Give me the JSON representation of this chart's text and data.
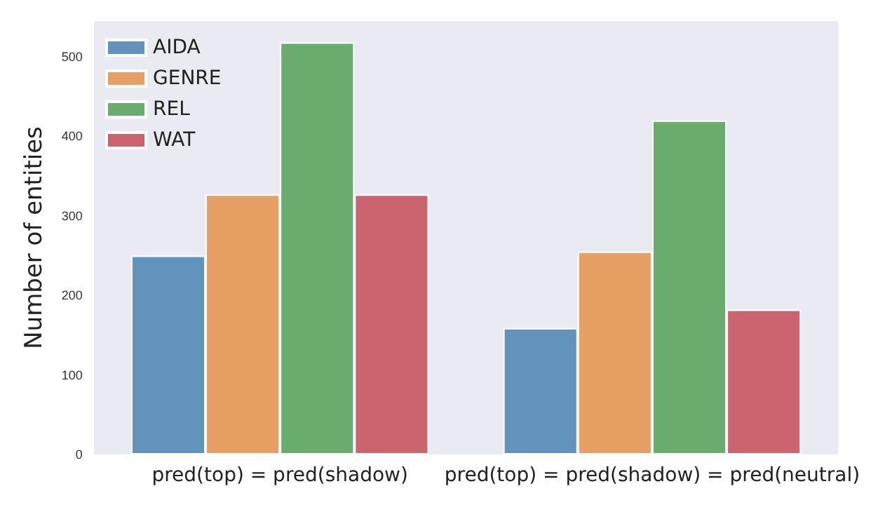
{
  "chart_data": {
    "type": "bar",
    "ylabel": "Number of entities",
    "categories": [
      "pred(top) = pred(shadow)",
      "pred(top) = pred(shadow) = pred(neutral)"
    ],
    "series": [
      {
        "name": "AIDA",
        "color": "#6293bd",
        "values": [
          250,
          159
        ]
      },
      {
        "name": "GENRE",
        "color": "#e6a064",
        "values": [
          327,
          255
        ]
      },
      {
        "name": "REL",
        "color": "#6aac6e",
        "values": [
          518,
          420
        ]
      },
      {
        "name": "WAT",
        "color": "#cc6470",
        "values": [
          327,
          182
        ]
      }
    ],
    "ylim": [
      0,
      545
    ],
    "yticks": [
      0,
      100,
      200,
      300,
      400,
      500
    ],
    "grid": false,
    "legend": "top left"
  }
}
